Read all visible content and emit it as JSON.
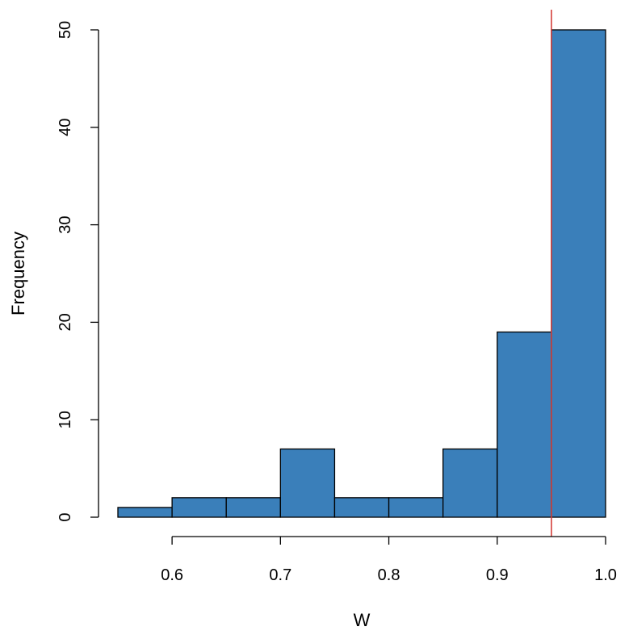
{
  "chart_data": {
    "type": "bar",
    "title": "",
    "xlabel": "W",
    "ylabel": "Frequency",
    "bins": [
      {
        "start": 0.55,
        "end": 0.6,
        "count": 1
      },
      {
        "start": 0.6,
        "end": 0.65,
        "count": 2
      },
      {
        "start": 0.65,
        "end": 0.7,
        "count": 2
      },
      {
        "start": 0.7,
        "end": 0.75,
        "count": 7
      },
      {
        "start": 0.75,
        "end": 0.8,
        "count": 2
      },
      {
        "start": 0.8,
        "end": 0.85,
        "count": 2
      },
      {
        "start": 0.85,
        "end": 0.9,
        "count": 7
      },
      {
        "start": 0.9,
        "end": 0.95,
        "count": 19
      },
      {
        "start": 0.95,
        "end": 1.0,
        "count": 50
      }
    ],
    "xlim": [
      0.55,
      1.0
    ],
    "ylim": [
      0,
      50
    ],
    "x_ticks": [
      "0.6",
      "0.7",
      "0.8",
      "0.9",
      "1.0"
    ],
    "y_ticks": [
      "0",
      "10",
      "20",
      "30",
      "40",
      "50"
    ],
    "reference_line": {
      "x": 0.95,
      "orientation": "vertical"
    },
    "grid": false,
    "legend": "none",
    "colors": {
      "bar_fill": "#3a7fba",
      "bar_stroke": "#000000",
      "reference_line": "#d43f3a",
      "axis": "#000000"
    }
  }
}
